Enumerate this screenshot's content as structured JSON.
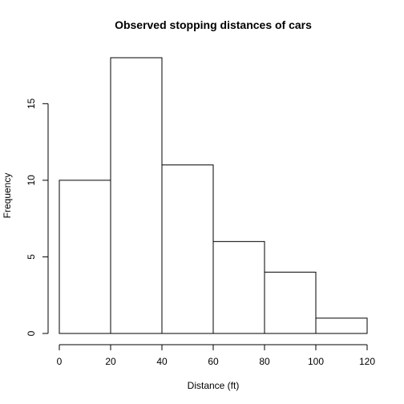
{
  "chart_data": {
    "type": "bar",
    "subtype": "histogram",
    "title": "Observed stopping distances of cars",
    "xlabel": "Distance (ft)",
    "ylabel": "Frequency",
    "bins": [
      {
        "start": 0,
        "end": 20,
        "value": 10
      },
      {
        "start": 20,
        "end": 40,
        "value": 18
      },
      {
        "start": 40,
        "end": 60,
        "value": 11
      },
      {
        "start": 60,
        "end": 80,
        "value": 6
      },
      {
        "start": 80,
        "end": 100,
        "value": 4
      },
      {
        "start": 100,
        "end": 120,
        "value": 1
      }
    ],
    "xlim": [
      0,
      120
    ],
    "ylim": [
      0,
      18
    ],
    "x_ticks": [
      "0",
      "20",
      "40",
      "60",
      "80",
      "100",
      "120"
    ],
    "y_ticks": [
      "0",
      "5",
      "10",
      "15"
    ],
    "grid": false,
    "legend": "none",
    "colors": {
      "bar_fill": "#ffffff",
      "bar_stroke": "#000000",
      "axis": "#000000"
    }
  }
}
